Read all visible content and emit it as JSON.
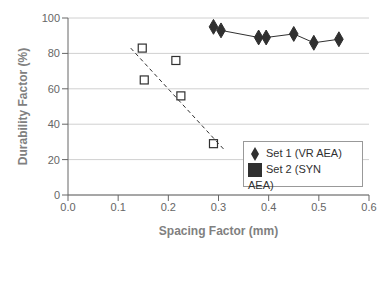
{
  "chart_data": {
    "type": "scatter",
    "xlabel": "Spacing Factor (mm)",
    "ylabel": "Durability Factor (%)",
    "xlim": [
      0.0,
      0.6
    ],
    "ylim": [
      0,
      100
    ],
    "xticks": [
      {
        "value": 0.0,
        "label": "0.0"
      },
      0.1,
      0.2,
      0.3,
      0.4,
      0.5,
      0.6
    ],
    "yticks": [
      0,
      20,
      40,
      60,
      80,
      100
    ],
    "grid": "y",
    "legend": "lower right",
    "series": [
      {
        "name": "Set 1 (VR AEA)",
        "type": "line",
        "color": "#303030",
        "marker": "diamond",
        "line_style": "solid",
        "x": [
          0.29,
          0.305,
          0.38,
          0.395,
          0.45,
          0.49,
          0.54
        ],
        "values": [
          95,
          93,
          89,
          89,
          91,
          86,
          88
        ]
      },
      {
        "name": "Set 2 (SYN AEA)",
        "type": "scatter",
        "color": "#303030",
        "marker": "square_open",
        "x": [
          0.148,
          0.152,
          0.215,
          0.225,
          0.29
        ],
        "values": [
          83,
          65,
          76,
          56,
          29
        ],
        "trendline": {
          "x": [
            0.125,
            0.31
          ],
          "values": [
            83,
            26
          ],
          "line_style": "dashed"
        }
      }
    ]
  }
}
